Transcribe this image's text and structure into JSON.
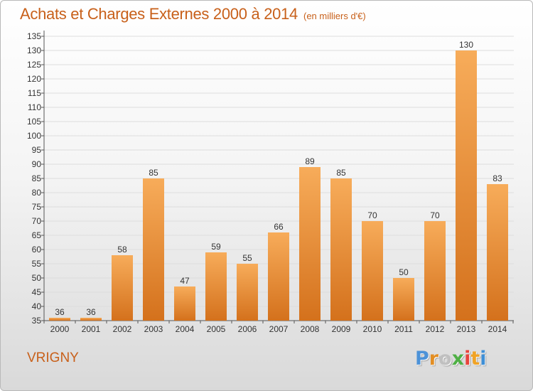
{
  "header": {
    "title": "Achats et Charges Externes 2000 à 2014",
    "unit": "(en milliers d'€)"
  },
  "footer": {
    "commune": "VRIGNY",
    "brand": [
      "P",
      "r",
      "o",
      "x",
      "i",
      "t",
      "i"
    ],
    "brand_colors": [
      "#4c92d8",
      "#e28e24",
      "#c0c0c0",
      "#4fb045",
      "#e8433c",
      "#f0a326",
      "#3f8fd6"
    ]
  },
  "colors": {
    "bar_top": "#f7ac5a",
    "bar_bottom": "#d4711c",
    "title": "#c8601a"
  },
  "chart_data": {
    "type": "bar",
    "categories": [
      "2000",
      "2001",
      "2002",
      "2003",
      "2004",
      "2005",
      "2006",
      "2007",
      "2008",
      "2009",
      "2010",
      "2011",
      "2012",
      "2013",
      "2014"
    ],
    "values": [
      36,
      36,
      58,
      85,
      47,
      59,
      55,
      66,
      89,
      85,
      70,
      50,
      70,
      130,
      83
    ],
    "ylim": [
      35,
      135
    ],
    "yticks": [
      35,
      40,
      45,
      50,
      55,
      60,
      65,
      70,
      75,
      80,
      85,
      90,
      95,
      100,
      105,
      110,
      115,
      120,
      125,
      130,
      135
    ],
    "grid": true
  }
}
